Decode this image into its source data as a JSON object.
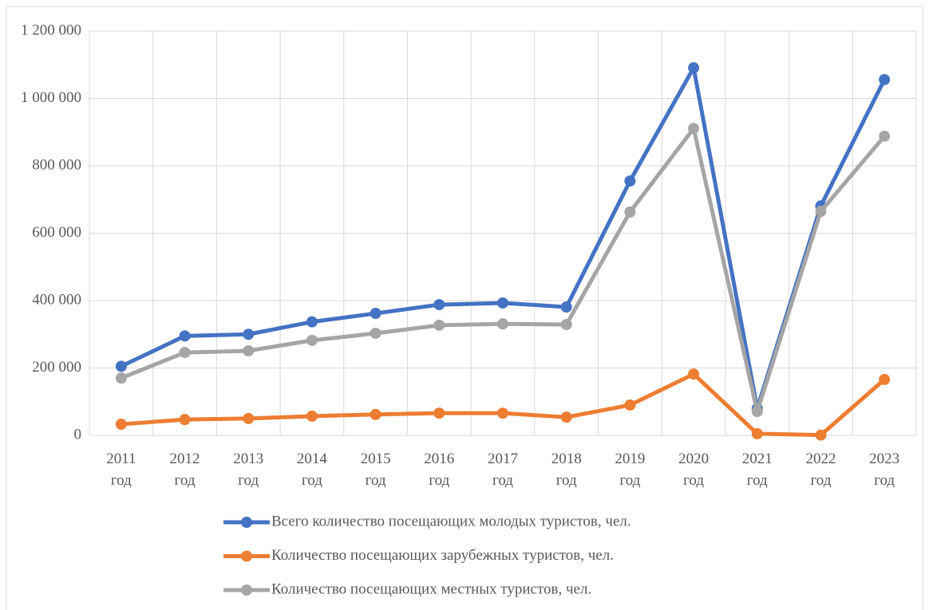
{
  "chart_data": {
    "type": "line",
    "categories": [
      "2011 год",
      "2012 год",
      "2013 год",
      "2014 год",
      "2015 год",
      "2016 год",
      "2017 год",
      "2018 год",
      "2019 год",
      "2020 год",
      "2021 год",
      "2022 год",
      "2023 год"
    ],
    "series": [
      {
        "name": "Всего количество посещающих молодых туристов, чел.",
        "color": "#4472c4",
        "values": [
          205000,
          295000,
          300000,
          337000,
          362000,
          388000,
          393000,
          381000,
          755000,
          1091000,
          80000,
          681000,
          1056000
        ]
      },
      {
        "name": "Количество посещающих зарубежных туристов, чел.",
        "color": "#ed7d31",
        "values": [
          33000,
          47000,
          50000,
          57000,
          62000,
          66000,
          66000,
          54000,
          90000,
          182000,
          5000,
          1000,
          166000
        ]
      },
      {
        "name": "Количество посещающих местных туристов, чел.",
        "color": "#a5a5a5",
        "values": [
          170000,
          246000,
          251000,
          282000,
          303000,
          327000,
          331000,
          329000,
          663000,
          911000,
          71000,
          665000,
          888000
        ]
      }
    ],
    "ylim": [
      0,
      1200000
    ],
    "yticks": [
      0,
      {
        "value": 200000,
        "label": "200 000"
      },
      {
        "value": 400000,
        "label": "400 000"
      },
      {
        "value": 600000,
        "label": "600 000"
      },
      {
        "value": 800000,
        "label": "800 000"
      },
      {
        "value": 1000000,
        "label": "1 000 000"
      },
      {
        "value": 1200000,
        "label": "1 200 000"
      }
    ],
    "grid": true,
    "legend": "bottom"
  }
}
